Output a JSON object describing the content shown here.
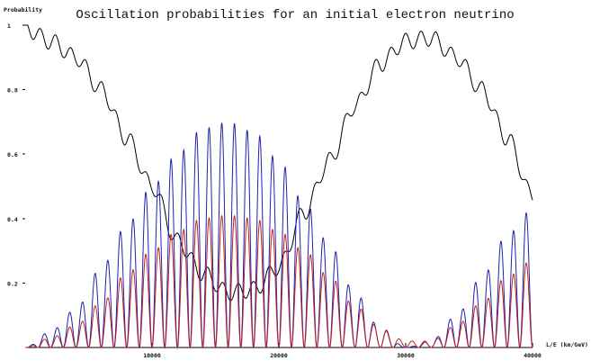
{
  "chart_data": {
    "type": "line",
    "title": "Oscillation probabilities for an initial electron neutrino",
    "ylabel": "Probability",
    "xlabel": "L/E (km/GeV)",
    "xlim": [
      0,
      40000
    ],
    "ylim": [
      0,
      1
    ],
    "x_ticks": [
      10000,
      20000,
      30000,
      40000
    ],
    "x_tick_labels": [
      "10000",
      "20000",
      "30000",
      "40000"
    ],
    "y_ticks": [
      0.2,
      0.4,
      0.6,
      0.8,
      1
    ],
    "y_tick_labels": [
      "0.2",
      "0.4",
      "0.6",
      "0.8",
      "1"
    ],
    "grid": false,
    "legend": "none",
    "series": [
      {
        "color": "#000000",
        "x": [
          0,
          2000,
          4000,
          6000,
          8000,
          10000,
          12000,
          14000,
          16000,
          18000,
          20000,
          22000,
          24000,
          26000,
          28000,
          30000,
          32000,
          34000,
          36000,
          38000,
          40000
        ],
        "values": [
          0.99,
          0.95,
          0.9,
          0.8,
          0.65,
          0.5,
          0.33,
          0.23,
          0.17,
          0.18,
          0.25,
          0.42,
          0.58,
          0.75,
          0.88,
          0.95,
          0.96,
          0.9,
          0.8,
          0.65,
          0.47
        ]
      },
      {
        "color": "#2020b0",
        "x": [
          0,
          2000,
          4000,
          6000,
          8000,
          10000,
          12000,
          14000,
          16000,
          18000,
          20000,
          22000,
          24000,
          26000,
          28000,
          30000,
          32000,
          34000,
          36000,
          38000,
          40000
        ],
        "values": [
          0.0,
          0.05,
          0.12,
          0.25,
          0.38,
          0.5,
          0.6,
          0.68,
          0.7,
          0.67,
          0.58,
          0.45,
          0.32,
          0.17,
          0.06,
          0.0,
          0.02,
          0.1,
          0.22,
          0.35,
          0.43
        ]
      },
      {
        "color": "#c02020",
        "x": [
          0,
          2000,
          4000,
          6000,
          8000,
          10000,
          12000,
          14000,
          16000,
          18000,
          20000,
          22000,
          24000,
          26000,
          28000,
          30000,
          32000,
          34000,
          36000,
          38000,
          40000
        ],
        "values": [
          0.0,
          0.03,
          0.07,
          0.14,
          0.23,
          0.3,
          0.36,
          0.4,
          0.41,
          0.4,
          0.36,
          0.3,
          0.22,
          0.13,
          0.06,
          0.02,
          0.02,
          0.07,
          0.14,
          0.22,
          0.27
        ]
      }
    ]
  }
}
